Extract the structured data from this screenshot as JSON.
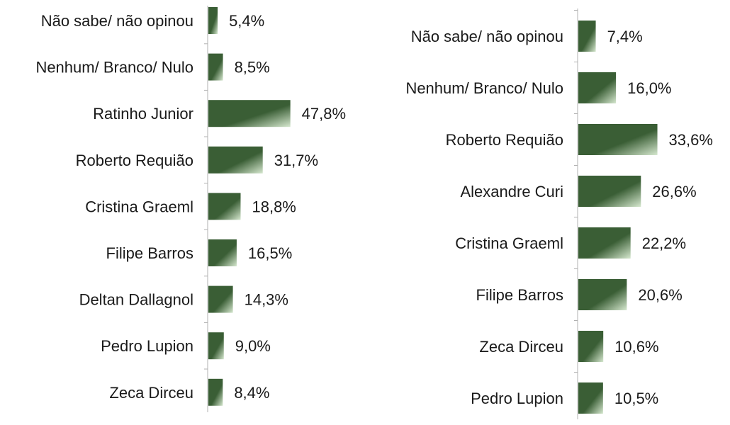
{
  "colors": {
    "bar_dark": "#3a5e35",
    "bar_light": "#d6e8cf",
    "axis": "#b0b0b0",
    "text": "#1a1a1a"
  },
  "chart_data": [
    {
      "type": "bar",
      "orientation": "horizontal",
      "xlim": [
        0,
        50
      ],
      "grid": false,
      "legend": "none",
      "categories": [
        "Não sabe/ não opinou",
        "Nenhum/ Branco/ Nulo",
        "Ratinho Junior",
        "Roberto Requião",
        "Cristina Graeml",
        "Filipe Barros",
        "Deltan Dallagnol",
        "Pedro Lupion",
        "Zeca Dirceu"
      ],
      "values": [
        5.4,
        8.5,
        47.8,
        31.7,
        18.8,
        16.5,
        14.3,
        9.0,
        8.4
      ],
      "data_labels": [
        "5,4%",
        "8,5%",
        "47,8%",
        "31,7%",
        "18,8%",
        "16,5%",
        "14,3%",
        "9,0%",
        "8,4%"
      ]
    },
    {
      "type": "bar",
      "orientation": "horizontal",
      "xlim": [
        0,
        50
      ],
      "grid": false,
      "legend": "none",
      "categories": [
        "Não sabe/ não opinou",
        "Nenhum/ Branco/ Nulo",
        "Roberto Requião",
        "Alexandre Curi",
        "Cristina Graeml",
        "Filipe Barros",
        "Zeca Dirceu",
        "Pedro Lupion"
      ],
      "values": [
        7.4,
        16.0,
        33.6,
        26.6,
        22.2,
        20.6,
        10.6,
        10.5
      ],
      "data_labels": [
        "7,4%",
        "16,0%",
        "33,6%",
        "26,6%",
        "22,2%",
        "20,6%",
        "10,6%",
        "10,5%"
      ]
    }
  ]
}
